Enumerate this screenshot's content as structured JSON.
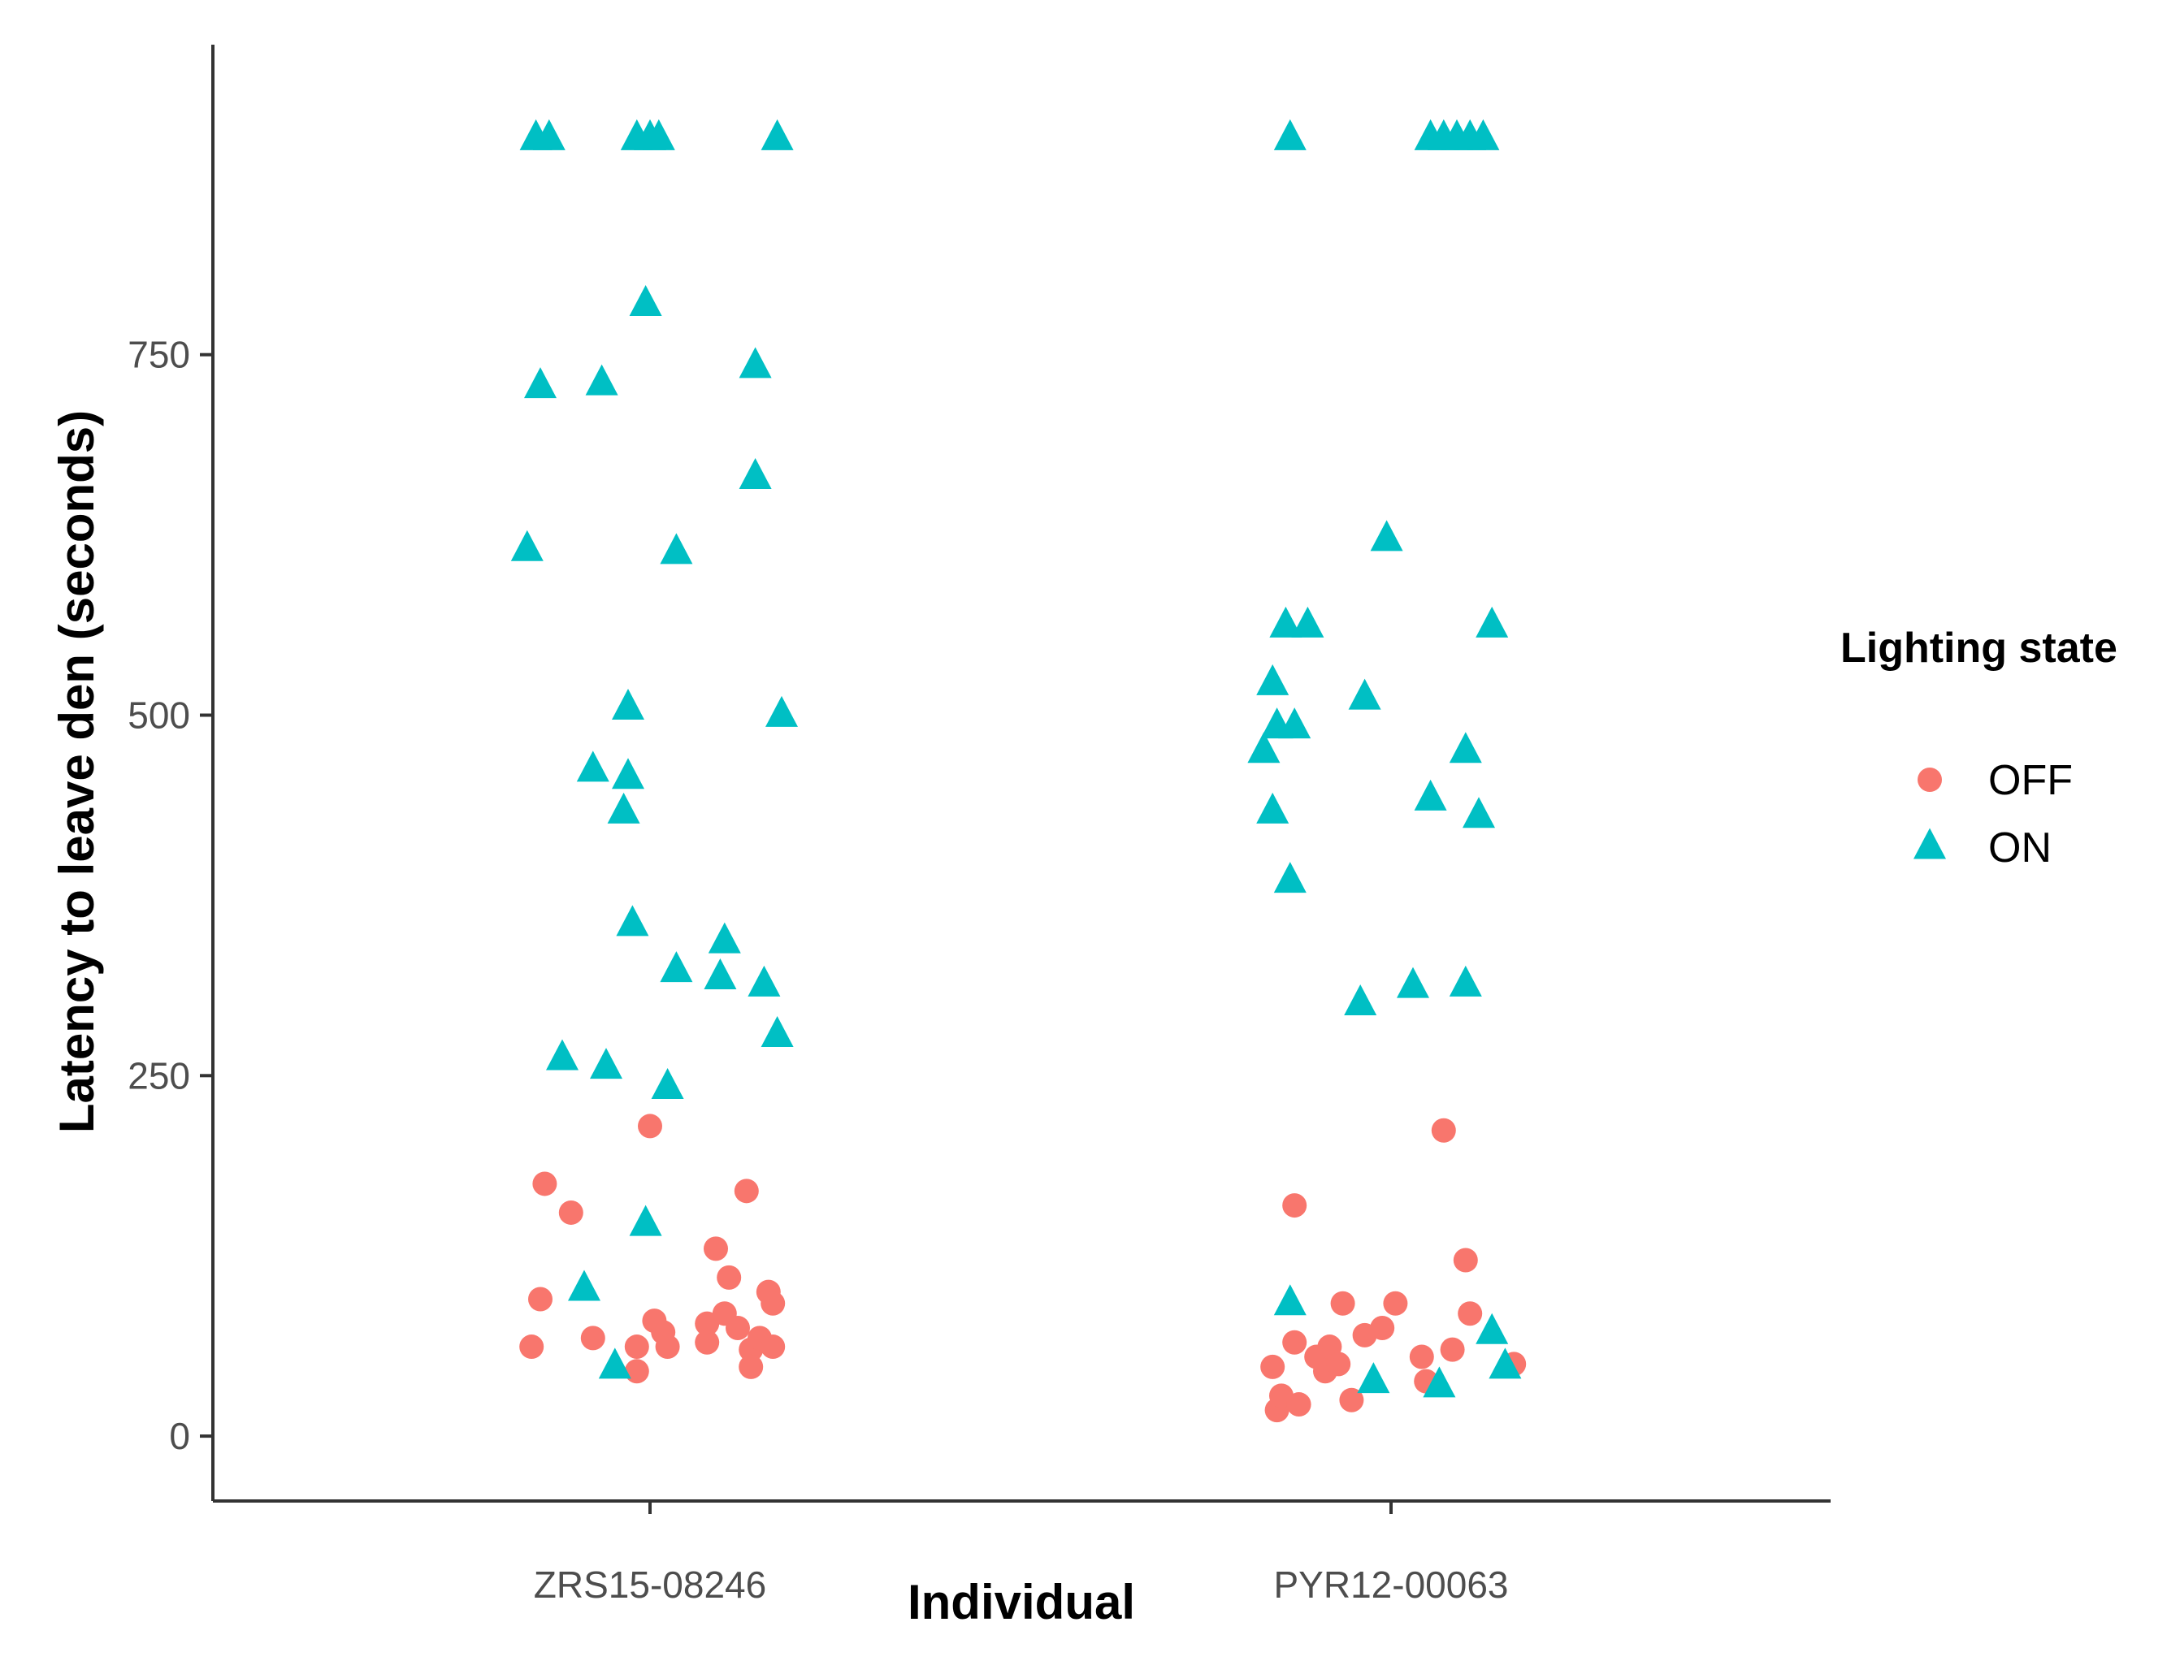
{
  "chart_data": {
    "type": "scatter",
    "title": "",
    "xlabel": "Individual",
    "ylabel": "Latency to leave den (seconds)",
    "categories": [
      "ZRS15-08246",
      "PYR12-00063"
    ],
    "ylim": [
      -45,
      965
    ],
    "y_ticks": [
      0,
      250,
      500,
      750
    ],
    "y_tick_labels": [
      "0",
      "250",
      "500",
      "750"
    ],
    "grid": false,
    "legend": {
      "title": "Lighting state",
      "position": "right",
      "entries": [
        {
          "name": "OFF",
          "shape": "circle",
          "color": "#F8766D"
        },
        {
          "name": "ON",
          "shape": "triangle",
          "color": "#00BFC4"
        }
      ]
    },
    "series": [
      {
        "name": "OFF",
        "shape": "circle",
        "color": "#F8766D",
        "points": [
          {
            "category": "ZRS15-08246",
            "jitter": -0.27,
            "y": 62
          },
          {
            "category": "ZRS15-08246",
            "jitter": -0.25,
            "y": 95
          },
          {
            "category": "ZRS15-08246",
            "jitter": -0.24,
            "y": 175
          },
          {
            "category": "ZRS15-08246",
            "jitter": -0.18,
            "y": 155
          },
          {
            "category": "ZRS15-08246",
            "jitter": -0.13,
            "y": 68
          },
          {
            "category": "ZRS15-08246",
            "jitter": -0.03,
            "y": 62
          },
          {
            "category": "ZRS15-08246",
            "jitter": -0.03,
            "y": 45
          },
          {
            "category": "ZRS15-08246",
            "jitter": 0.0,
            "y": 215
          },
          {
            "category": "ZRS15-08246",
            "jitter": 0.01,
            "y": 80
          },
          {
            "category": "ZRS15-08246",
            "jitter": 0.03,
            "y": 72
          },
          {
            "category": "ZRS15-08246",
            "jitter": 0.04,
            "y": 62
          },
          {
            "category": "ZRS15-08246",
            "jitter": 0.13,
            "y": 78
          },
          {
            "category": "ZRS15-08246",
            "jitter": 0.13,
            "y": 65
          },
          {
            "category": "ZRS15-08246",
            "jitter": 0.15,
            "y": 130
          },
          {
            "category": "ZRS15-08246",
            "jitter": 0.18,
            "y": 110
          },
          {
            "category": "ZRS15-08246",
            "jitter": 0.17,
            "y": 85
          },
          {
            "category": "ZRS15-08246",
            "jitter": 0.2,
            "y": 75
          },
          {
            "category": "ZRS15-08246",
            "jitter": 0.22,
            "y": 170
          },
          {
            "category": "ZRS15-08246",
            "jitter": 0.23,
            "y": 60
          },
          {
            "category": "ZRS15-08246",
            "jitter": 0.23,
            "y": 48
          },
          {
            "category": "ZRS15-08246",
            "jitter": 0.25,
            "y": 68
          },
          {
            "category": "ZRS15-08246",
            "jitter": 0.27,
            "y": 100
          },
          {
            "category": "ZRS15-08246",
            "jitter": 0.28,
            "y": 92
          },
          {
            "category": "ZRS15-08246",
            "jitter": 0.28,
            "y": 62
          },
          {
            "category": "PYR12-00063",
            "jitter": -0.27,
            "y": 48
          },
          {
            "category": "PYR12-00063",
            "jitter": -0.26,
            "y": 18
          },
          {
            "category": "PYR12-00063",
            "jitter": -0.25,
            "y": 28
          },
          {
            "category": "PYR12-00063",
            "jitter": -0.22,
            "y": 160
          },
          {
            "category": "PYR12-00063",
            "jitter": -0.22,
            "y": 65
          },
          {
            "category": "PYR12-00063",
            "jitter": -0.21,
            "y": 22
          },
          {
            "category": "PYR12-00063",
            "jitter": -0.17,
            "y": 55
          },
          {
            "category": "PYR12-00063",
            "jitter": -0.15,
            "y": 45
          },
          {
            "category": "PYR12-00063",
            "jitter": -0.14,
            "y": 62
          },
          {
            "category": "PYR12-00063",
            "jitter": -0.12,
            "y": 50
          },
          {
            "category": "PYR12-00063",
            "jitter": -0.11,
            "y": 92
          },
          {
            "category": "PYR12-00063",
            "jitter": -0.09,
            "y": 25
          },
          {
            "category": "PYR12-00063",
            "jitter": -0.06,
            "y": 70
          },
          {
            "category": "PYR12-00063",
            "jitter": -0.02,
            "y": 75
          },
          {
            "category": "PYR12-00063",
            "jitter": 0.01,
            "y": 92
          },
          {
            "category": "PYR12-00063",
            "jitter": 0.07,
            "y": 55
          },
          {
            "category": "PYR12-00063",
            "jitter": 0.08,
            "y": 38
          },
          {
            "category": "PYR12-00063",
            "jitter": 0.12,
            "y": 212
          },
          {
            "category": "PYR12-00063",
            "jitter": 0.14,
            "y": 60
          },
          {
            "category": "PYR12-00063",
            "jitter": 0.17,
            "y": 122
          },
          {
            "category": "PYR12-00063",
            "jitter": 0.18,
            "y": 85
          },
          {
            "category": "PYR12-00063",
            "jitter": 0.28,
            "y": 50
          }
        ]
      },
      {
        "name": "ON",
        "shape": "triangle",
        "color": "#00BFC4",
        "points": [
          {
            "category": "ZRS15-08246",
            "jitter": -0.26,
            "y": 900
          },
          {
            "category": "ZRS15-08246",
            "jitter": -0.23,
            "y": 900
          },
          {
            "category": "ZRS15-08246",
            "jitter": -0.03,
            "y": 900
          },
          {
            "category": "ZRS15-08246",
            "jitter": 0.0,
            "y": 900
          },
          {
            "category": "ZRS15-08246",
            "jitter": 0.02,
            "y": 900
          },
          {
            "category": "ZRS15-08246",
            "jitter": 0.29,
            "y": 900
          },
          {
            "category": "ZRS15-08246",
            "jitter": -0.01,
            "y": 785
          },
          {
            "category": "ZRS15-08246",
            "jitter": 0.24,
            "y": 742
          },
          {
            "category": "ZRS15-08246",
            "jitter": -0.25,
            "y": 728
          },
          {
            "category": "ZRS15-08246",
            "jitter": -0.11,
            "y": 730
          },
          {
            "category": "ZRS15-08246",
            "jitter": 0.24,
            "y": 665
          },
          {
            "category": "ZRS15-08246",
            "jitter": -0.28,
            "y": 615
          },
          {
            "category": "ZRS15-08246",
            "jitter": 0.06,
            "y": 613
          },
          {
            "category": "ZRS15-08246",
            "jitter": -0.05,
            "y": 505
          },
          {
            "category": "ZRS15-08246",
            "jitter": 0.3,
            "y": 500
          },
          {
            "category": "ZRS15-08246",
            "jitter": -0.13,
            "y": 462
          },
          {
            "category": "ZRS15-08246",
            "jitter": -0.05,
            "y": 457
          },
          {
            "category": "ZRS15-08246",
            "jitter": -0.06,
            "y": 433
          },
          {
            "category": "ZRS15-08246",
            "jitter": -0.04,
            "y": 355
          },
          {
            "category": "ZRS15-08246",
            "jitter": 0.17,
            "y": 343
          },
          {
            "category": "ZRS15-08246",
            "jitter": 0.06,
            "y": 323
          },
          {
            "category": "ZRS15-08246",
            "jitter": 0.16,
            "y": 318
          },
          {
            "category": "ZRS15-08246",
            "jitter": 0.26,
            "y": 313
          },
          {
            "category": "ZRS15-08246",
            "jitter": 0.29,
            "y": 278
          },
          {
            "category": "ZRS15-08246",
            "jitter": -0.2,
            "y": 262
          },
          {
            "category": "ZRS15-08246",
            "jitter": -0.1,
            "y": 256
          },
          {
            "category": "ZRS15-08246",
            "jitter": 0.04,
            "y": 242
          },
          {
            "category": "ZRS15-08246",
            "jitter": -0.01,
            "y": 147
          },
          {
            "category": "ZRS15-08246",
            "jitter": -0.15,
            "y": 102
          },
          {
            "category": "ZRS15-08246",
            "jitter": -0.08,
            "y": 48
          },
          {
            "category": "PYR12-00063",
            "jitter": -0.23,
            "y": 900
          },
          {
            "category": "PYR12-00063",
            "jitter": 0.09,
            "y": 900
          },
          {
            "category": "PYR12-00063",
            "jitter": 0.12,
            "y": 900
          },
          {
            "category": "PYR12-00063",
            "jitter": 0.15,
            "y": 900
          },
          {
            "category": "PYR12-00063",
            "jitter": 0.18,
            "y": 900
          },
          {
            "category": "PYR12-00063",
            "jitter": 0.21,
            "y": 900
          },
          {
            "category": "PYR12-00063",
            "jitter": -0.01,
            "y": 622
          },
          {
            "category": "PYR12-00063",
            "jitter": -0.24,
            "y": 562
          },
          {
            "category": "PYR12-00063",
            "jitter": -0.19,
            "y": 562
          },
          {
            "category": "PYR12-00063",
            "jitter": 0.23,
            "y": 562
          },
          {
            "category": "PYR12-00063",
            "jitter": -0.27,
            "y": 522
          },
          {
            "category": "PYR12-00063",
            "jitter": -0.06,
            "y": 512
          },
          {
            "category": "PYR12-00063",
            "jitter": -0.26,
            "y": 492
          },
          {
            "category": "PYR12-00063",
            "jitter": -0.22,
            "y": 492
          },
          {
            "category": "PYR12-00063",
            "jitter": -0.29,
            "y": 475
          },
          {
            "category": "PYR12-00063",
            "jitter": 0.17,
            "y": 475
          },
          {
            "category": "PYR12-00063",
            "jitter": 0.09,
            "y": 442
          },
          {
            "category": "PYR12-00063",
            "jitter": -0.27,
            "y": 433
          },
          {
            "category": "PYR12-00063",
            "jitter": 0.2,
            "y": 430
          },
          {
            "category": "PYR12-00063",
            "jitter": -0.23,
            "y": 385
          },
          {
            "category": "PYR12-00063",
            "jitter": 0.05,
            "y": 312
          },
          {
            "category": "PYR12-00063",
            "jitter": 0.17,
            "y": 313
          },
          {
            "category": "PYR12-00063",
            "jitter": -0.07,
            "y": 300
          },
          {
            "category": "PYR12-00063",
            "jitter": -0.23,
            "y": 92
          },
          {
            "category": "PYR12-00063",
            "jitter": 0.23,
            "y": 72
          },
          {
            "category": "PYR12-00063",
            "jitter": 0.26,
            "y": 48
          },
          {
            "category": "PYR12-00063",
            "jitter": -0.04,
            "y": 38
          },
          {
            "category": "PYR12-00063",
            "jitter": 0.11,
            "y": 35
          }
        ]
      }
    ]
  }
}
